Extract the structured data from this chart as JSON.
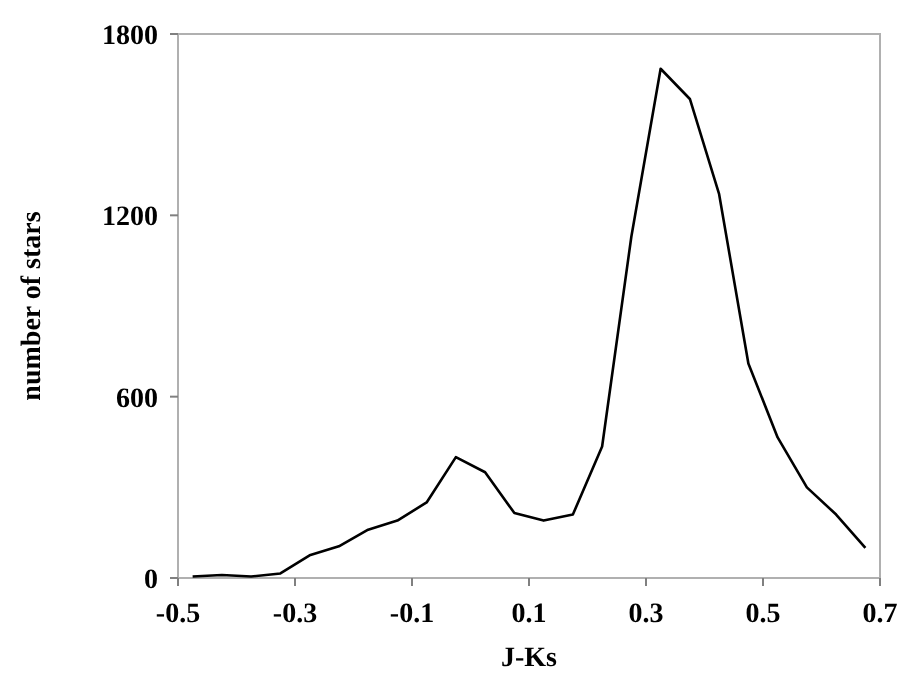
{
  "chart_data": {
    "type": "line",
    "xlabel": "J-Ks",
    "ylabel": "number of stars",
    "x": [
      -0.475,
      -0.425,
      -0.375,
      -0.325,
      -0.275,
      -0.225,
      -0.175,
      -0.125,
      -0.075,
      -0.025,
      0.025,
      0.075,
      0.125,
      0.175,
      0.225,
      0.275,
      0.325,
      0.375,
      0.425,
      0.475,
      0.525,
      0.575,
      0.625,
      0.675
    ],
    "series": [
      {
        "color": "#000000",
        "values": [
          5,
          10,
          5,
          15,
          75,
          105,
          160,
          190,
          250,
          400,
          350,
          215,
          190,
          210,
          435,
          1130,
          1685,
          1585,
          1270,
          710,
          465,
          300,
          210,
          100
        ]
      }
    ],
    "xlim": [
      -0.5,
      0.7
    ],
    "xticks": [
      -0.5,
      -0.3,
      -0.1,
      0.1,
      0.3,
      0.5,
      0.7
    ],
    "ylim": [
      0,
      1800
    ],
    "yticks": [
      0,
      600,
      1200,
      1800
    ],
    "grid": false,
    "marker": "none",
    "line_style": "solid"
  }
}
